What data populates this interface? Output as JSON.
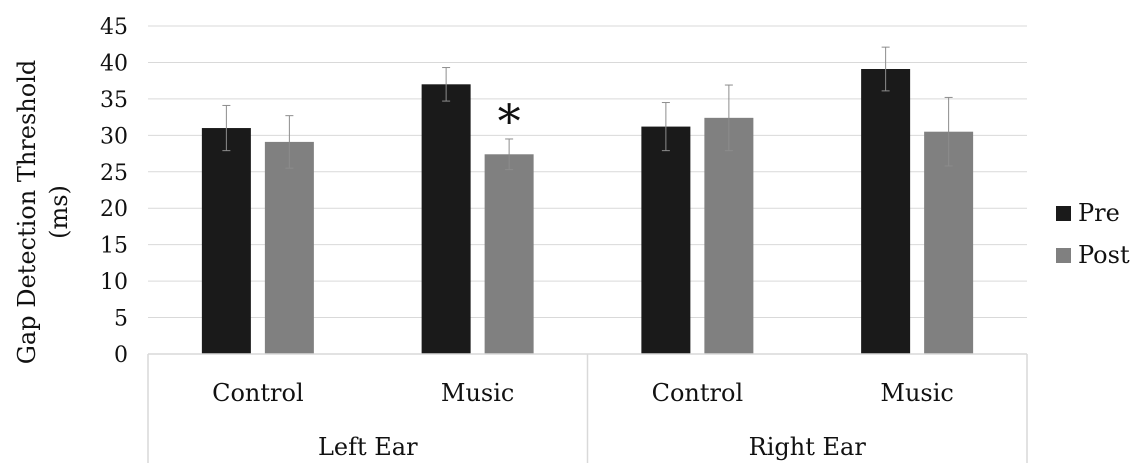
{
  "chart_data": {
    "type": "bar",
    "ylabel_lines": [
      "Gap Detection Threshold",
      "(ms)"
    ],
    "ylim": [
      0,
      45
    ],
    "yticks": [
      "0",
      "5",
      "10",
      "15",
      "20",
      "25",
      "30",
      "35",
      "40",
      "45"
    ],
    "groups": [
      {
        "label": "Left Ear",
        "categories": [
          "Control",
          "Music"
        ]
      },
      {
        "label": "Right Ear",
        "categories": [
          "Control",
          "Music"
        ]
      }
    ],
    "categories": [
      "Control",
      "Music",
      "Control",
      "Music"
    ],
    "series": [
      {
        "name": "Pre",
        "color": "#1a1a1a",
        "values": [
          31.0,
          37.0,
          31.2,
          39.1
        ],
        "errors": [
          3.1,
          2.3,
          3.3,
          3.0
        ]
      },
      {
        "name": "Post",
        "color": "#808080",
        "values": [
          29.1,
          27.4,
          32.4,
          30.5
        ],
        "errors": [
          3.6,
          2.1,
          4.5,
          4.7
        ]
      }
    ],
    "annotations": [
      {
        "text": "*",
        "category_index": 1,
        "series": "Post"
      }
    ],
    "grid": true,
    "legend_position": "right"
  }
}
